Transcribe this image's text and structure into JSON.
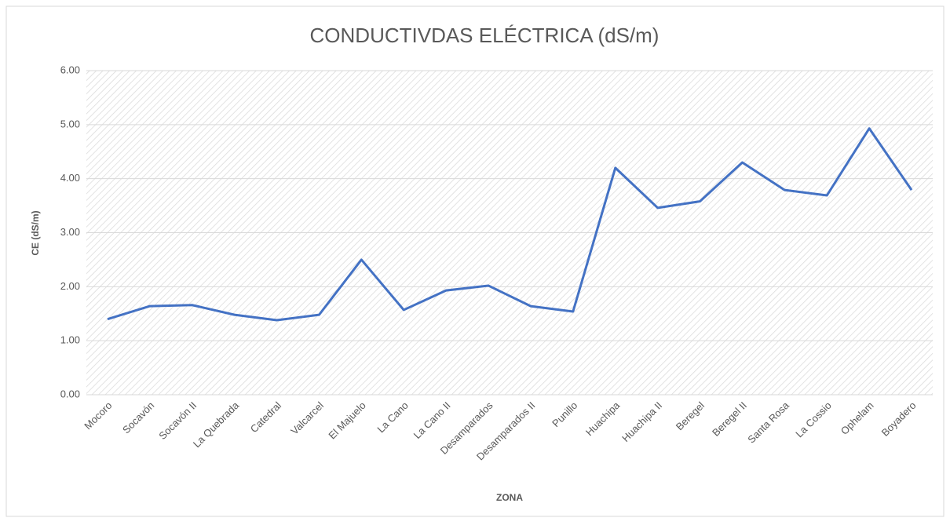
{
  "chart_data": {
    "type": "line",
    "title": "CONDUCTIVDAS ELÉCTRICA (dS/m)",
    "x_label": "ZONA",
    "y_label": "CE (dS/m)",
    "categories": [
      "Mocoro",
      "Socavón",
      "Socavón II",
      "La Quebrada",
      "Catedral",
      "Valcarcel",
      "El Majuelo",
      "La Cano",
      "La Cano II",
      "Desamparados",
      "Desamparados II",
      "Punillo",
      "Huachipa",
      "Huachipa II",
      "Beregel",
      "Beregel II",
      "Santa Rosa",
      "La Cossio",
      "Ophelam",
      "Boyadero"
    ],
    "series": [
      {
        "name": "CE",
        "color": "#4472c4",
        "values": [
          1.4,
          1.64,
          1.66,
          1.48,
          1.38,
          1.48,
          2.5,
          1.57,
          1.93,
          2.02,
          1.64,
          1.54,
          4.2,
          3.46,
          3.58,
          4.3,
          3.79,
          3.69,
          4.93,
          3.79
        ]
      }
    ],
    "ylim": [
      0,
      6
    ],
    "yticks": [
      {
        "value": 0,
        "label": "0.00"
      },
      {
        "value": 1,
        "label": "1.00"
      },
      {
        "value": 2,
        "label": "2.00"
      },
      {
        "value": 3,
        "label": "3.00"
      },
      {
        "value": 4,
        "label": "4.00"
      },
      {
        "value": 5,
        "label": "5.00"
      },
      {
        "value": 6,
        "label": "6.00"
      }
    ],
    "grid": true
  }
}
